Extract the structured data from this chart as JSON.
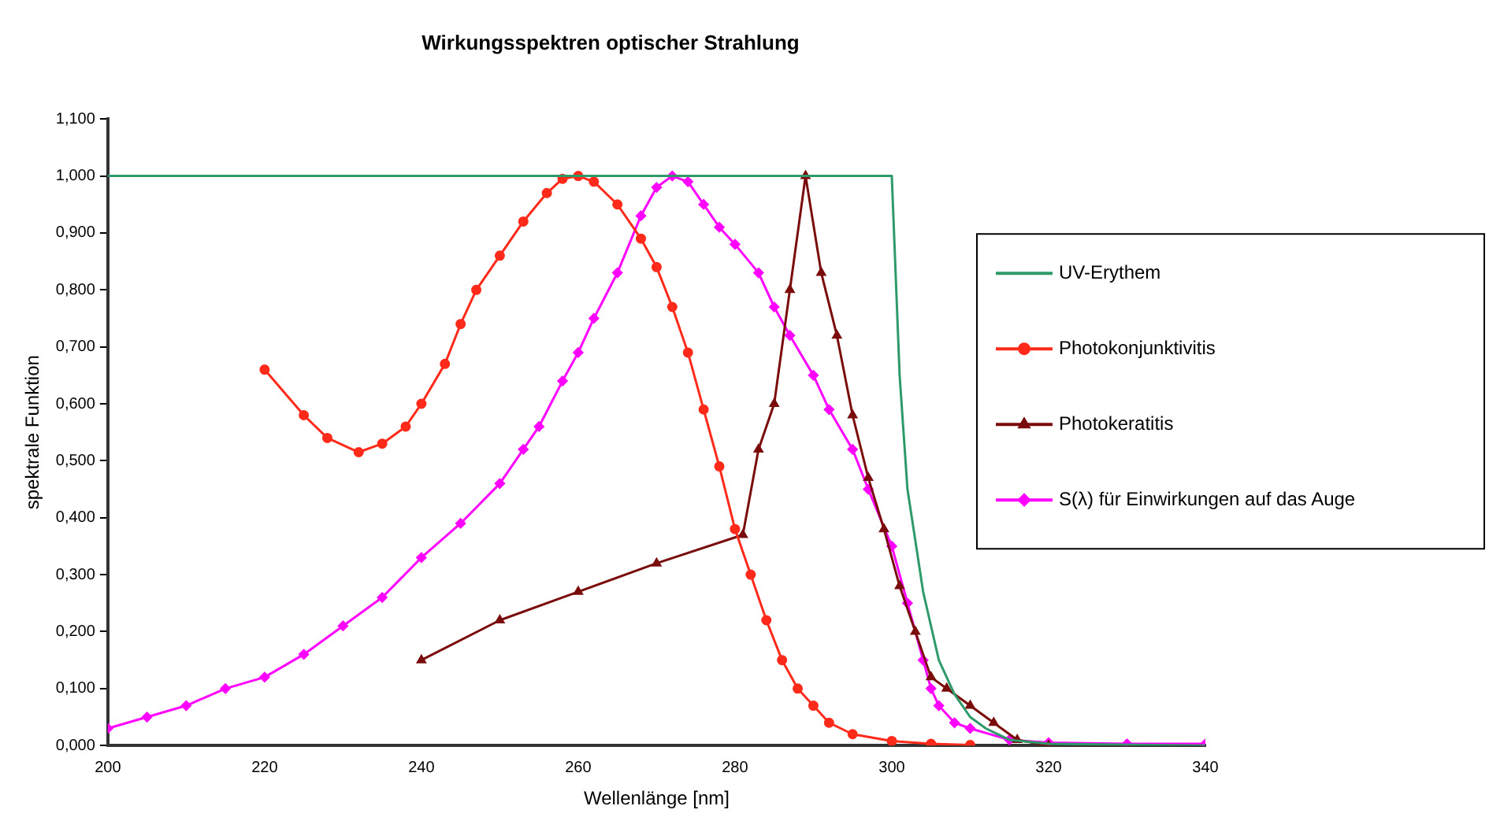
{
  "chart_data": {
    "type": "line",
    "title": "Wirkungsspektren optischer Strahlung",
    "xlabel": "Wellenlänge [nm]",
    "ylabel": "spektrale Funktion",
    "xlim": [
      200,
      340
    ],
    "xticks": [
      200,
      220,
      240,
      260,
      280,
      300,
      320,
      340
    ],
    "ylim": [
      0,
      1.1
    ],
    "yticks": [
      {
        "value": 0,
        "label": "0,000"
      },
      {
        "value": 0.1,
        "label": "0,100"
      },
      {
        "value": 0.2,
        "label": "0,200"
      },
      {
        "value": 0.3,
        "label": "0,300"
      },
      {
        "value": 0.4,
        "label": "0,400"
      },
      {
        "value": 0.5,
        "label": "0,500"
      },
      {
        "value": 0.6,
        "label": "0,600"
      },
      {
        "value": 0.7,
        "label": "0,700"
      },
      {
        "value": 0.8,
        "label": "0,800"
      },
      {
        "value": 0.9,
        "label": "0,900"
      },
      {
        "value": 1.0,
        "label": "1,000"
      },
      {
        "value": 1.1,
        "label": "1,100"
      }
    ],
    "grid": false,
    "legend": "right",
    "series": [
      {
        "name": "UV-Erythem",
        "color": "#2e9a6a",
        "marker": "none",
        "x": [
          200,
          300,
          301,
          302,
          304,
          306,
          308,
          310,
          312,
          315,
          320,
          340
        ],
        "values": [
          1.0,
          1.0,
          0.65,
          0.45,
          0.27,
          0.15,
          0.09,
          0.05,
          0.03,
          0.01,
          0.003,
          0.0
        ]
      },
      {
        "name": "Photokonjunktivitis",
        "color": "#ff2a1a",
        "marker": "circle",
        "x": [
          220,
          225,
          228,
          232,
          235,
          238,
          240,
          243,
          245,
          247,
          250,
          253,
          256,
          258,
          260,
          262,
          265,
          268,
          270,
          272,
          274,
          276,
          278,
          280,
          282,
          284,
          286,
          288,
          290,
          292,
          295,
          300,
          305,
          310
        ],
        "values": [
          0.66,
          0.58,
          0.54,
          0.515,
          0.53,
          0.56,
          0.6,
          0.67,
          0.74,
          0.8,
          0.86,
          0.92,
          0.97,
          0.995,
          1.0,
          0.99,
          0.95,
          0.89,
          0.84,
          0.77,
          0.69,
          0.59,
          0.49,
          0.38,
          0.3,
          0.22,
          0.15,
          0.1,
          0.07,
          0.04,
          0.02,
          0.008,
          0.003,
          0.001
        ]
      },
      {
        "name": "Photokeratitis",
        "color": "#7a0c0c",
        "marker": "triangle",
        "x": [
          240,
          250,
          260,
          270,
          281,
          283,
          285,
          287,
          289,
          291,
          293,
          295,
          297,
          299,
          301,
          303,
          305,
          307,
          310,
          313,
          316,
          320
        ],
        "values": [
          0.15,
          0.22,
          0.27,
          0.32,
          0.37,
          0.52,
          0.6,
          0.8,
          1.0,
          0.83,
          0.72,
          0.58,
          0.47,
          0.38,
          0.28,
          0.2,
          0.12,
          0.1,
          0.07,
          0.04,
          0.01,
          0.0
        ]
      },
      {
        "name": "S(λ) für Einwirkungen auf das Auge",
        "color": "#ff00ff",
        "marker": "diamond",
        "x": [
          200,
          205,
          210,
          215,
          220,
          225,
          230,
          235,
          240,
          245,
          250,
          253,
          255,
          258,
          260,
          262,
          265,
          268,
          270,
          272,
          274,
          276,
          278,
          280,
          283,
          285,
          287,
          290,
          292,
          295,
          297,
          300,
          302,
          304,
          305,
          306,
          308,
          310,
          315,
          320,
          330,
          340
        ],
        "values": [
          0.03,
          0.05,
          0.07,
          0.1,
          0.12,
          0.16,
          0.21,
          0.26,
          0.33,
          0.39,
          0.46,
          0.52,
          0.56,
          0.64,
          0.69,
          0.75,
          0.83,
          0.93,
          0.98,
          1.0,
          0.99,
          0.95,
          0.91,
          0.88,
          0.83,
          0.77,
          0.72,
          0.65,
          0.59,
          0.52,
          0.45,
          0.35,
          0.25,
          0.15,
          0.1,
          0.07,
          0.04,
          0.03,
          0.01,
          0.005,
          0.003,
          0.003
        ]
      }
    ]
  }
}
